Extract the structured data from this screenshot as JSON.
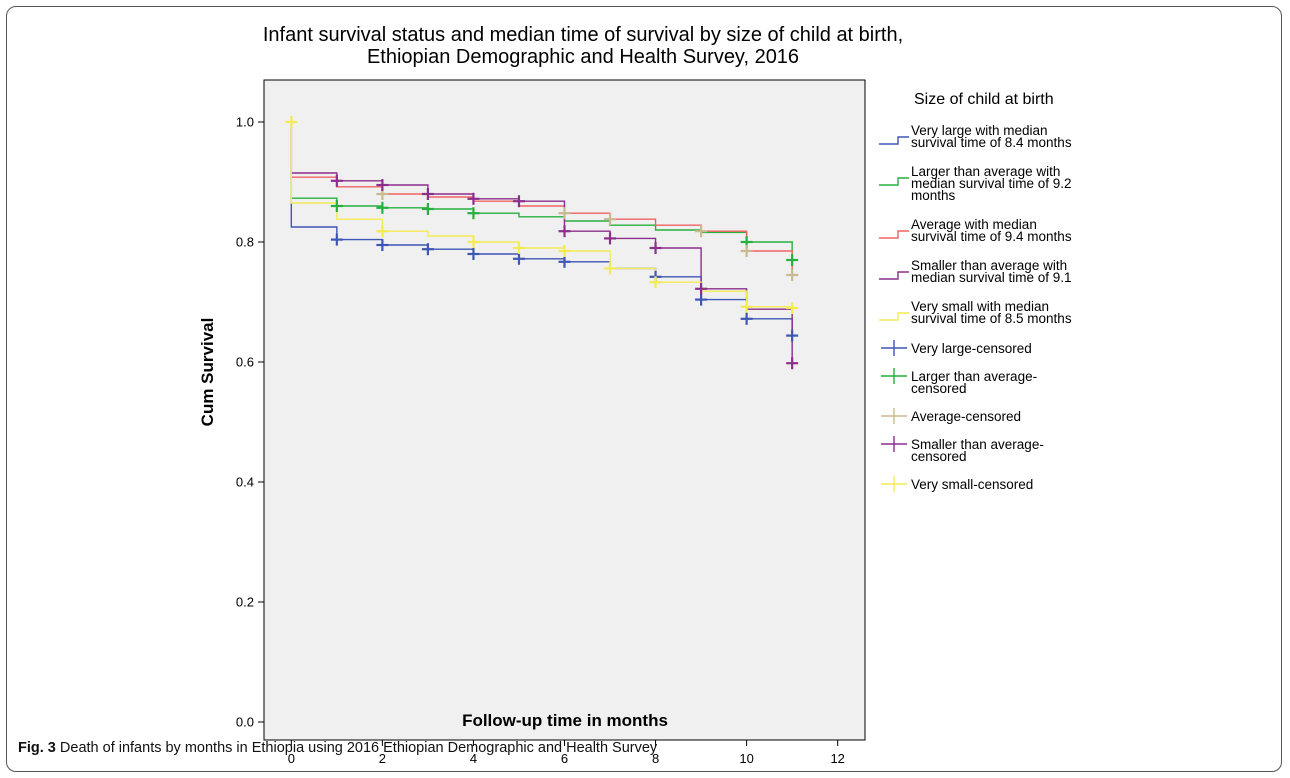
{
  "chart_data": {
    "type": "line",
    "title_lines": [
      "Infant survival status and median time of survival by size of child at birth,",
      "Ethiopian Demographic and Health Survey, 2016"
    ],
    "xlabel": "Follow-up time in months",
    "ylabel": "Cum Survival",
    "xlim": [
      -0.6,
      12.6
    ],
    "ylim": [
      -0.03,
      1.07
    ],
    "xticks": [
      0,
      2,
      4,
      6,
      8,
      10,
      12
    ],
    "yticks": [
      0.0,
      0.2,
      0.4,
      0.6,
      0.8,
      1.0
    ],
    "ytick_labels": [
      "0.0",
      "0.2",
      "0.4",
      "0.6",
      "0.8",
      "1.0"
    ],
    "grid": false,
    "plot_background": "#f0f0f0",
    "legend_title": "Size of child at birth",
    "legend_position": "right",
    "series": [
      {
        "name": "Very large with median survival time of 8.4 months",
        "legend_lines": [
          "Very large with median",
          "survival time of 8.4 months"
        ],
        "color": "#3e56b4",
        "censored_color": "#3e56b4",
        "x": [
          0,
          0,
          1,
          2,
          3,
          4,
          5,
          6,
          7,
          8,
          9,
          10,
          11
        ],
        "y": [
          1.0,
          0.825,
          0.804,
          0.795,
          0.788,
          0.78,
          0.772,
          0.767,
          0.756,
          0.742,
          0.704,
          0.672,
          0.644
        ],
        "censored_x": [
          1,
          2,
          3,
          4,
          5,
          6,
          8,
          9,
          10,
          11
        ],
        "censored_y": [
          0.804,
          0.795,
          0.788,
          0.78,
          0.772,
          0.767,
          0.742,
          0.704,
          0.672,
          0.644
        ]
      },
      {
        "name": "Larger than average with median survival time of 9.2 months",
        "legend_lines": [
          "Larger than average with",
          "median survival time of 9.2",
          "months"
        ],
        "color": "#26b03e",
        "censored_color": "#26b03e",
        "x": [
          0,
          0,
          1,
          2,
          3,
          4,
          5,
          6,
          7,
          8,
          9,
          10,
          11
        ],
        "y": [
          1.0,
          0.873,
          0.86,
          0.857,
          0.855,
          0.848,
          0.842,
          0.835,
          0.828,
          0.82,
          0.816,
          0.8,
          0.77
        ],
        "censored_x": [
          1,
          2,
          3,
          4,
          10,
          11
        ],
        "censored_y": [
          0.86,
          0.857,
          0.855,
          0.848,
          0.8,
          0.77
        ]
      },
      {
        "name": "Average with median survival time of 9.4 months",
        "legend_lines": [
          "Average with median",
          "survival time of 9.4 months"
        ],
        "color": "#f06262",
        "censored_color": "#c8b98e",
        "x": [
          0,
          0,
          1,
          2,
          3,
          4,
          5,
          6,
          7,
          8,
          9,
          10,
          11
        ],
        "y": [
          1.0,
          0.908,
          0.892,
          0.88,
          0.875,
          0.868,
          0.86,
          0.848,
          0.838,
          0.828,
          0.818,
          0.785,
          0.745
        ],
        "censored_x": [
          2,
          6,
          7,
          9,
          10,
          11
        ],
        "censored_y": [
          0.88,
          0.848,
          0.838,
          0.818,
          0.785,
          0.745
        ]
      },
      {
        "name": "Smaller than average with median survival time of 9.1",
        "legend_lines": [
          "Smaller than average with",
          "median survival time of 9.1"
        ],
        "color": "#8c2e8c",
        "censored_color": "#8c2e8c",
        "x": [
          0,
          0,
          1,
          2,
          3,
          4,
          5,
          6,
          7,
          8,
          9,
          10,
          11
        ],
        "y": [
          1.0,
          0.915,
          0.902,
          0.895,
          0.88,
          0.872,
          0.868,
          0.818,
          0.806,
          0.79,
          0.722,
          0.688,
          0.598
        ],
        "censored_x": [
          1,
          2,
          3,
          4,
          5,
          6,
          7,
          8,
          9,
          11
        ],
        "censored_y": [
          0.902,
          0.895,
          0.88,
          0.872,
          0.868,
          0.818,
          0.806,
          0.79,
          0.722,
          0.598
        ]
      },
      {
        "name": "Very small with median survival time of 8.5 months",
        "legend_lines": [
          "Very small with median",
          "survival time of 8.5 months"
        ],
        "color": "#f2ec52",
        "censored_color": "#f2ec52",
        "x": [
          0,
          0,
          1,
          2,
          3,
          4,
          5,
          6,
          7,
          8,
          9,
          10,
          11
        ],
        "y": [
          1.0,
          0.865,
          0.838,
          0.818,
          0.81,
          0.8,
          0.79,
          0.785,
          0.756,
          0.733,
          0.718,
          0.692,
          0.69
        ],
        "censored_x": [
          0,
          2,
          4,
          5,
          6,
          7,
          8,
          10,
          11
        ],
        "censored_y": [
          1.0,
          0.818,
          0.8,
          0.79,
          0.785,
          0.756,
          0.733,
          0.692,
          0.69
        ]
      }
    ],
    "censored_legend": [
      {
        "legend_lines": [
          "Very large-censored"
        ],
        "color": "#3e56b4"
      },
      {
        "legend_lines": [
          "Larger than average-",
          "censored"
        ],
        "color": "#26b03e"
      },
      {
        "legend_lines": [
          "Average-censored"
        ],
        "color": "#c8b98e"
      },
      {
        "legend_lines": [
          "Smaller than average-",
          "censored"
        ],
        "color": "#8c2e8c"
      },
      {
        "legend_lines": [
          "Very small-censored"
        ],
        "color": "#f2ec52"
      }
    ]
  },
  "caption": {
    "label": "Fig. 3",
    "text": " Death of infants by months in Ethiopia using 2016 Ethiopian Demographic and Health Survey"
  }
}
